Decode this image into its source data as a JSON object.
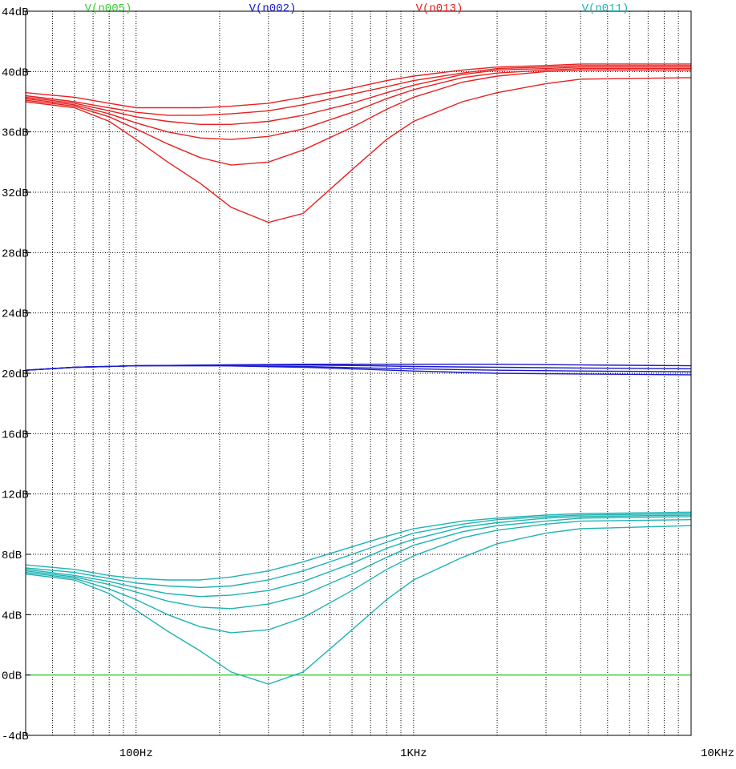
{
  "chart_data": {
    "type": "line",
    "x_scale": "log",
    "xlim": [
      40,
      10000
    ],
    "ylim": [
      -4,
      44
    ],
    "grid": true,
    "x_ticks": [
      {
        "value": 100,
        "label": "100Hz"
      },
      {
        "value": 1000,
        "label": "1KHz"
      },
      {
        "value": 10000,
        "label": "10KHz"
      }
    ],
    "y_ticks": [
      {
        "value": 44,
        "label": "44dB"
      },
      {
        "value": 40,
        "label": "40dB"
      },
      {
        "value": 36,
        "label": "36dB"
      },
      {
        "value": 32,
        "label": "32dB"
      },
      {
        "value": 28,
        "label": "28dB"
      },
      {
        "value": 24,
        "label": "24dB"
      },
      {
        "value": 20,
        "label": "20dB"
      },
      {
        "value": 16,
        "label": "16dB"
      },
      {
        "value": 12,
        "label": "12dB"
      },
      {
        "value": 8,
        "label": "8dB"
      },
      {
        "value": 4,
        "label": "4dB"
      },
      {
        "value": 0,
        "label": "0dB"
      },
      {
        "value": -4,
        "label": "-4dB"
      }
    ],
    "legend": [
      {
        "name": "V(n005)",
        "color": "#33cc33"
      },
      {
        "name": "V(n002)",
        "color": "#1a1acc"
      },
      {
        "name": "V(n013)",
        "color": "#e82020"
      },
      {
        "name": "V(n011)",
        "color": "#1fb3b3"
      }
    ],
    "series": [
      {
        "name": "V(n005)",
        "color": "#33cc33",
        "x": [
          40,
          10000
        ],
        "y": [
          0,
          0
        ]
      },
      {
        "name": "V(n002)",
        "color": "#1a1acc",
        "x": [
          40,
          60,
          100,
          200,
          400,
          700,
          1000,
          2000,
          4000,
          10000
        ],
        "y": [
          20.2,
          20.4,
          20.5,
          20.55,
          20.6,
          20.6,
          20.6,
          20.6,
          20.55,
          20.5
        ]
      },
      {
        "name": "V(n002)",
        "color": "#1a1acc",
        "x": [
          40,
          60,
          100,
          200,
          400,
          700,
          1000,
          2000,
          4000,
          10000
        ],
        "y": [
          20.2,
          20.4,
          20.5,
          20.55,
          20.55,
          20.5,
          20.45,
          20.4,
          20.35,
          20.3
        ]
      },
      {
        "name": "V(n002)",
        "color": "#1a1acc",
        "x": [
          40,
          60,
          100,
          200,
          400,
          700,
          1000,
          2000,
          4000,
          10000
        ],
        "y": [
          20.2,
          20.4,
          20.5,
          20.5,
          20.45,
          20.35,
          20.3,
          20.2,
          20.15,
          20.1
        ]
      },
      {
        "name": "V(n002)",
        "color": "#1a1acc",
        "x": [
          40,
          60,
          100,
          200,
          400,
          700,
          1000,
          2000,
          4000,
          10000
        ],
        "y": [
          20.2,
          20.4,
          20.5,
          20.5,
          20.4,
          20.25,
          20.15,
          20.0,
          19.95,
          19.9
        ]
      },
      {
        "name": "V(n013)",
        "color": "#e82020",
        "x": [
          40,
          60,
          80,
          100,
          130,
          170,
          220,
          300,
          400,
          600,
          800,
          1000,
          1500,
          2000,
          3000,
          4000,
          10000
        ],
        "y": [
          38.0,
          37.6,
          36.7,
          35.5,
          34.0,
          32.6,
          31.0,
          30.0,
          30.6,
          33.5,
          35.5,
          36.7,
          38.0,
          38.6,
          39.2,
          39.5,
          39.6
        ]
      },
      {
        "name": "V(n013)",
        "color": "#e82020",
        "x": [
          40,
          60,
          80,
          100,
          130,
          170,
          220,
          300,
          400,
          600,
          800,
          1000,
          1500,
          2000,
          3000,
          4000,
          10000
        ],
        "y": [
          38.1,
          37.7,
          37.0,
          36.2,
          35.2,
          34.3,
          33.8,
          34.0,
          34.8,
          36.3,
          37.5,
          38.3,
          39.3,
          39.7,
          40.0,
          40.1,
          40.1
        ]
      },
      {
        "name": "V(n013)",
        "color": "#e82020",
        "x": [
          40,
          60,
          80,
          100,
          130,
          170,
          220,
          300,
          400,
          600,
          800,
          1000,
          1500,
          2000,
          3000,
          4000,
          10000
        ],
        "y": [
          38.2,
          37.8,
          37.2,
          36.6,
          36.0,
          35.6,
          35.5,
          35.7,
          36.2,
          37.3,
          38.2,
          38.8,
          39.6,
          39.9,
          40.1,
          40.2,
          40.2
        ]
      },
      {
        "name": "V(n013)",
        "color": "#e82020",
        "x": [
          40,
          60,
          80,
          100,
          130,
          170,
          220,
          300,
          400,
          600,
          800,
          1000,
          1500,
          2000,
          3000,
          4000,
          10000
        ],
        "y": [
          38.3,
          37.9,
          37.4,
          37.0,
          36.7,
          36.5,
          36.5,
          36.7,
          37.1,
          37.9,
          38.6,
          39.1,
          39.8,
          40.1,
          40.2,
          40.3,
          40.3
        ]
      },
      {
        "name": "V(n013)",
        "color": "#e82020",
        "x": [
          40,
          60,
          80,
          100,
          130,
          170,
          220,
          300,
          400,
          600,
          800,
          1000,
          1500,
          2000,
          3000,
          4000,
          10000
        ],
        "y": [
          38.4,
          38.0,
          37.6,
          37.3,
          37.1,
          37.1,
          37.2,
          37.4,
          37.8,
          38.5,
          39.0,
          39.4,
          39.9,
          40.2,
          40.3,
          40.4,
          40.4
        ]
      },
      {
        "name": "V(n013)",
        "color": "#e82020",
        "x": [
          40,
          60,
          80,
          100,
          130,
          170,
          220,
          300,
          400,
          600,
          800,
          1000,
          1500,
          2000,
          3000,
          4000,
          10000
        ],
        "y": [
          38.6,
          38.3,
          37.9,
          37.6,
          37.6,
          37.6,
          37.7,
          37.9,
          38.3,
          38.9,
          39.4,
          39.7,
          40.1,
          40.3,
          40.4,
          40.5,
          40.5
        ]
      },
      {
        "name": "V(n011)",
        "color": "#1fb3b3",
        "x": [
          40,
          60,
          80,
          100,
          130,
          170,
          220,
          300,
          400,
          600,
          800,
          1000,
          1500,
          2000,
          3000,
          4000,
          10000
        ],
        "y": [
          6.7,
          6.3,
          5.4,
          4.3,
          2.9,
          1.6,
          0.2,
          -0.6,
          0.2,
          3.0,
          5.0,
          6.3,
          7.8,
          8.7,
          9.4,
          9.7,
          9.9
        ]
      },
      {
        "name": "V(n011)",
        "color": "#1fb3b3",
        "x": [
          40,
          60,
          80,
          100,
          130,
          170,
          220,
          300,
          400,
          600,
          800,
          1000,
          1500,
          2000,
          3000,
          4000,
          10000
        ],
        "y": [
          6.8,
          6.4,
          5.7,
          5.0,
          4.0,
          3.2,
          2.8,
          3.0,
          3.8,
          5.6,
          7.0,
          7.9,
          9.1,
          9.6,
          10.0,
          10.2,
          10.3
        ]
      },
      {
        "name": "V(n011)",
        "color": "#1fb3b3",
        "x": [
          40,
          60,
          80,
          100,
          130,
          170,
          220,
          300,
          400,
          600,
          800,
          1000,
          1500,
          2000,
          3000,
          4000,
          10000
        ],
        "y": [
          6.9,
          6.5,
          6.0,
          5.5,
          4.9,
          4.5,
          4.4,
          4.7,
          5.3,
          6.7,
          7.8,
          8.6,
          9.5,
          9.9,
          10.2,
          10.4,
          10.5
        ]
      },
      {
        "name": "V(n011)",
        "color": "#1fb3b3",
        "x": [
          40,
          60,
          80,
          100,
          130,
          170,
          220,
          300,
          400,
          600,
          800,
          1000,
          1500,
          2000,
          3000,
          4000,
          10000
        ],
        "y": [
          7.0,
          6.6,
          6.2,
          5.8,
          5.4,
          5.2,
          5.3,
          5.6,
          6.2,
          7.4,
          8.4,
          9.0,
          9.8,
          10.1,
          10.4,
          10.5,
          10.6
        ]
      },
      {
        "name": "V(n011)",
        "color": "#1fb3b3",
        "x": [
          40,
          60,
          80,
          100,
          130,
          170,
          220,
          300,
          400,
          600,
          800,
          1000,
          1500,
          2000,
          3000,
          4000,
          10000
        ],
        "y": [
          7.1,
          6.8,
          6.4,
          6.1,
          5.9,
          5.8,
          5.9,
          6.3,
          6.9,
          8.0,
          8.8,
          9.4,
          10.0,
          10.3,
          10.5,
          10.6,
          10.7
        ]
      },
      {
        "name": "V(n011)",
        "color": "#1fb3b3",
        "x": [
          40,
          60,
          80,
          100,
          130,
          170,
          220,
          300,
          400,
          600,
          800,
          1000,
          1500,
          2000,
          3000,
          4000,
          10000
        ],
        "y": [
          7.3,
          7.0,
          6.6,
          6.4,
          6.3,
          6.3,
          6.5,
          6.9,
          7.5,
          8.5,
          9.2,
          9.7,
          10.2,
          10.4,
          10.6,
          10.7,
          10.8
        ]
      }
    ]
  }
}
